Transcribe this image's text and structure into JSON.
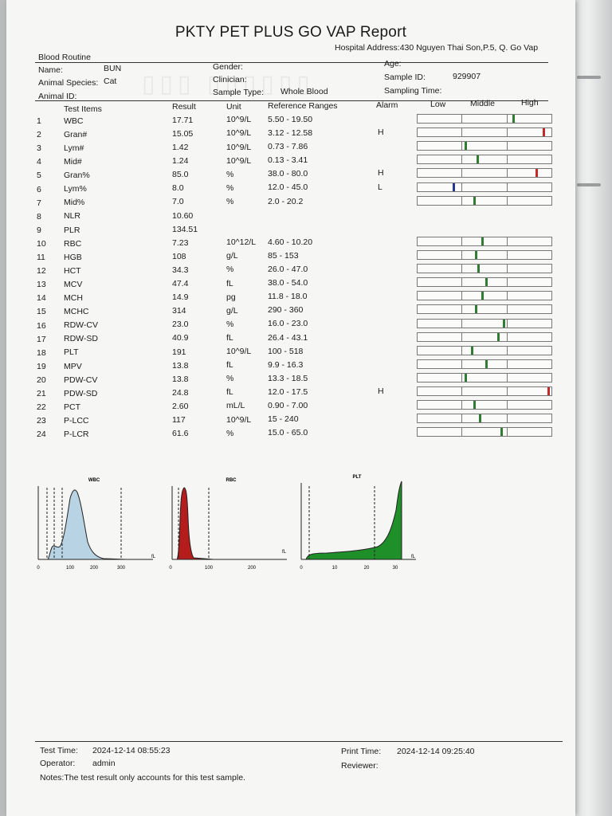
{
  "report": {
    "title": "PKTY PET PLUS GO VAP Report",
    "hospital_address": "Hospital Address:430 Nguyen Thai Son,P.5, Q. Go Vap"
  },
  "info": {
    "section": "Blood Routine",
    "name_label": "Name:",
    "name_value": "BUN",
    "species_label": "Animal Species:",
    "species_value": "Cat",
    "animal_id_label": "Animal ID:",
    "gender_label": "Gender:",
    "clinician_label": "Clinician:",
    "sample_type_label": "Sample Type:",
    "sample_type_value": "Whole Blood",
    "age_label": "Age:",
    "sample_id_label": "Sample ID:",
    "sample_id_value": "929907",
    "sampling_time_label": "Sampling Time:"
  },
  "table": {
    "headers": {
      "test_items": "Test Items",
      "result": "Result",
      "unit": "Unit",
      "reference": "Reference Ranges",
      "alarm": "Alarm",
      "low": "Low",
      "middle": "Middle",
      "high": "High"
    },
    "rows": [
      {
        "no": "1",
        "item": "WBC",
        "result": "17.71",
        "unit": "10^9/L",
        "ref": "5.50 - 19.50",
        "alarm": "",
        "gauge": 0.72,
        "mark_color": "#2e7d32"
      },
      {
        "no": "2",
        "item": "Gran#",
        "result": "15.05",
        "unit": "10^9/L",
        "ref": "3.12 - 12.58",
        "alarm": "H",
        "gauge": 0.95,
        "mark_color": "#c62828"
      },
      {
        "no": "3",
        "item": "Lym#",
        "result": "1.42",
        "unit": "10^9/L",
        "ref": "0.73 - 7.86",
        "alarm": "",
        "gauge": 0.36,
        "mark_color": "#2e7d32"
      },
      {
        "no": "4",
        "item": "Mid#",
        "result": "1.24",
        "unit": "10^9/L",
        "ref": "0.13 - 3.41",
        "alarm": "",
        "gauge": 0.45,
        "mark_color": "#2e7d32"
      },
      {
        "no": "5",
        "item": "Gran%",
        "result": "85.0",
        "unit": "%",
        "ref": "38.0 - 80.0",
        "alarm": "H",
        "gauge": 0.9,
        "mark_color": "#c62828"
      },
      {
        "no": "6",
        "item": "Lym%",
        "result": "8.0",
        "unit": "%",
        "ref": "12.0 - 45.0",
        "alarm": "L",
        "gauge": 0.27,
        "mark_color": "#283593"
      },
      {
        "no": "7",
        "item": "Mid%",
        "result": "7.0",
        "unit": "%",
        "ref": "2.0 - 20.2",
        "alarm": "",
        "gauge": 0.43,
        "mark_color": "#2e7d32"
      },
      {
        "no": "8",
        "item": "NLR",
        "result": "10.60",
        "unit": "",
        "ref": "",
        "alarm": "",
        "gauge": null,
        "mark_color": ""
      },
      {
        "no": "9",
        "item": "PLR",
        "result": "134.51",
        "unit": "",
        "ref": "",
        "alarm": "",
        "gauge": null,
        "mark_color": ""
      },
      {
        "no": "10",
        "item": "RBC",
        "result": "7.23",
        "unit": "10^12/L",
        "ref": "4.60 - 10.20",
        "alarm": "",
        "gauge": 0.49,
        "mark_color": "#2e7d32"
      },
      {
        "no": "11",
        "item": "HGB",
        "result": "108",
        "unit": "g/L",
        "ref": "85 - 153",
        "alarm": "",
        "gauge": 0.44,
        "mark_color": "#2e7d32"
      },
      {
        "no": "12",
        "item": "HCT",
        "result": "34.3",
        "unit": "%",
        "ref": "26.0 - 47.0",
        "alarm": "",
        "gauge": 0.46,
        "mark_color": "#2e7d32"
      },
      {
        "no": "13",
        "item": "MCV",
        "result": "47.4",
        "unit": "fL",
        "ref": "38.0 - 54.0",
        "alarm": "",
        "gauge": 0.52,
        "mark_color": "#2e7d32"
      },
      {
        "no": "14",
        "item": "MCH",
        "result": "14.9",
        "unit": "pg",
        "ref": "11.8 - 18.0",
        "alarm": "",
        "gauge": 0.49,
        "mark_color": "#2e7d32"
      },
      {
        "no": "15",
        "item": "MCHC",
        "result": "314",
        "unit": "g/L",
        "ref": "290 - 360",
        "alarm": "",
        "gauge": 0.44,
        "mark_color": "#2e7d32"
      },
      {
        "no": "16",
        "item": "RDW-CV",
        "result": "23.0",
        "unit": "%",
        "ref": "16.0 - 23.0",
        "alarm": "",
        "gauge": 0.65,
        "mark_color": "#2e7d32"
      },
      {
        "no": "17",
        "item": "RDW-SD",
        "result": "40.9",
        "unit": "fL",
        "ref": "26.4 - 43.1",
        "alarm": "",
        "gauge": 0.61,
        "mark_color": "#2e7d32"
      },
      {
        "no": "18",
        "item": "PLT",
        "result": "191",
        "unit": "10^9/L",
        "ref": "100 - 518",
        "alarm": "",
        "gauge": 0.41,
        "mark_color": "#2e7d32"
      },
      {
        "no": "19",
        "item": "MPV",
        "result": "13.8",
        "unit": "fL",
        "ref": "9.9 - 16.3",
        "alarm": "",
        "gauge": 0.52,
        "mark_color": "#2e7d32"
      },
      {
        "no": "20",
        "item": "PDW-CV",
        "result": "13.8",
        "unit": "%",
        "ref": "13.3 - 18.5",
        "alarm": "",
        "gauge": 0.36,
        "mark_color": "#2e7d32"
      },
      {
        "no": "21",
        "item": "PDW-SD",
        "result": "24.8",
        "unit": "fL",
        "ref": "12.0 - 17.5",
        "alarm": "H",
        "gauge": 0.99,
        "mark_color": "#c62828"
      },
      {
        "no": "22",
        "item": "PCT",
        "result": "2.60",
        "unit": "mL/L",
        "ref": "0.90 - 7.00",
        "alarm": "",
        "gauge": 0.43,
        "mark_color": "#2e7d32"
      },
      {
        "no": "23",
        "item": "P-LCC",
        "result": "117",
        "unit": "10^9/L",
        "ref": "15 - 240",
        "alarm": "",
        "gauge": 0.47,
        "mark_color": "#2e7d32"
      },
      {
        "no": "24",
        "item": "P-LCR",
        "result": "61.6",
        "unit": "%",
        "ref": "15.0 - 65.0",
        "alarm": "",
        "gauge": 0.63,
        "mark_color": "#2e7d32"
      }
    ]
  },
  "histograms": [
    {
      "name": "WBC",
      "unit": "fL",
      "ticks": [
        "0",
        "100",
        "200",
        "300"
      ],
      "fill": "#b8d3e3",
      "stroke": "#222"
    },
    {
      "name": "RBC",
      "unit": "fL",
      "ticks": [
        "0",
        "100",
        "200"
      ],
      "fill": "#b51c1c",
      "stroke": "#222"
    },
    {
      "name": "PLT",
      "unit": "fL",
      "ticks": [
        "0",
        "10",
        "20",
        "30"
      ],
      "fill": "#1f8f2a",
      "stroke": "#222"
    }
  ],
  "footer": {
    "test_time_label": "Test Time:",
    "test_time_value": "2024-12-14 08:55:23",
    "operator_label": "Operator:",
    "operator_value": "admin",
    "print_time_label": "Print Time:",
    "print_time_value": "2024-12-14 09:25:40",
    "reviewer_label": "Reviewer:",
    "notes": "Notes:The test result only accounts for this test sample."
  }
}
